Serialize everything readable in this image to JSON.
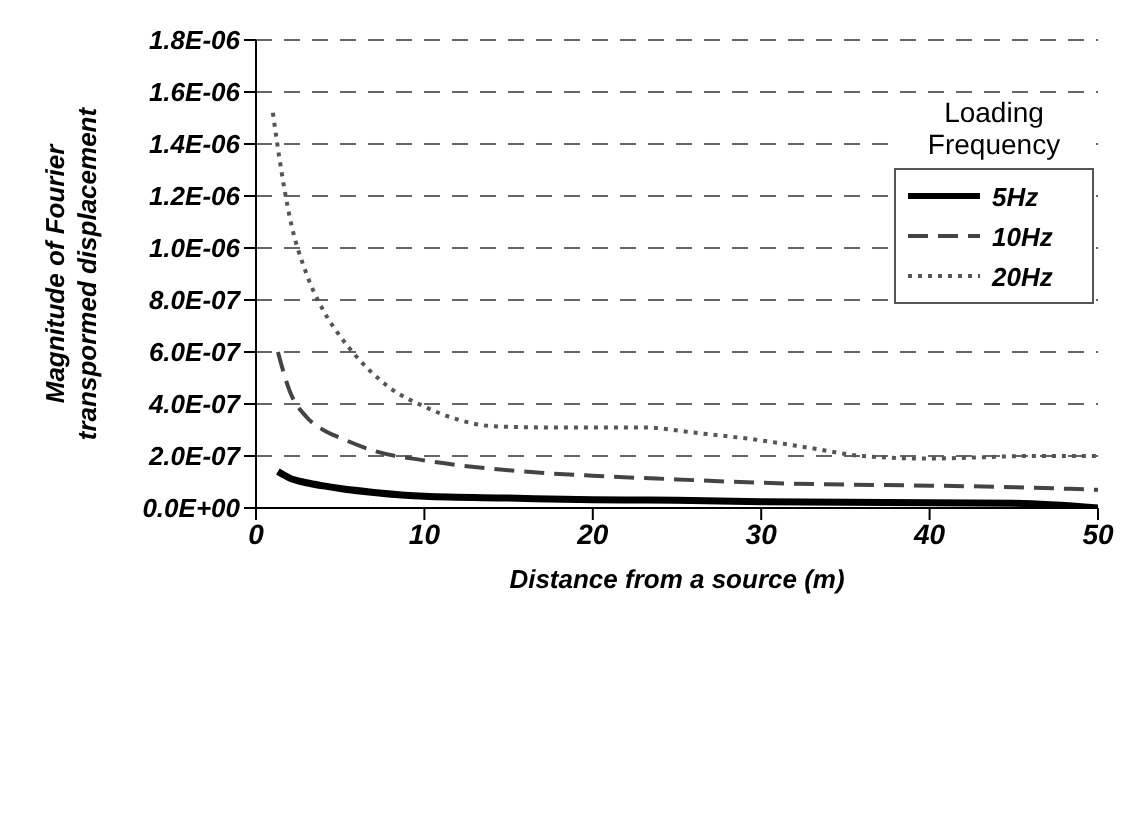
{
  "chart_data": {
    "type": "line",
    "xlabel": "Distance from a source (m)",
    "ylabel": "Magnitude of Fourier transpormed displacement",
    "legend_title": "Loading Frequency",
    "legend": "top right",
    "grid": "y",
    "marker": "none",
    "xlim": [
      0,
      50
    ],
    "xticks": [
      0,
      10,
      20,
      30,
      40,
      50
    ],
    "ylim": [
      0,
      1.8e-06
    ],
    "yticks": [
      {
        "value": 0,
        "label": "0.0E+00"
      },
      {
        "value": 2e-07,
        "label": "2.0E-07"
      },
      {
        "value": 4e-07,
        "label": "4.0E-07"
      },
      {
        "value": 6e-07,
        "label": "6.0E-07"
      },
      {
        "value": 8e-07,
        "label": "8.0E-07"
      },
      {
        "value": 1e-06,
        "label": "1.0E-06"
      },
      {
        "value": 1.2e-06,
        "label": "1.2E-06"
      },
      {
        "value": 1.4e-06,
        "label": "1.4E-06"
      },
      {
        "value": 1.6e-06,
        "label": "1.6E-06"
      },
      {
        "value": 1.8e-06,
        "label": "1.8E-06"
      }
    ],
    "series": [
      {
        "name": "5Hz",
        "color": "#000000",
        "line_style": "solid",
        "x": [
          1.3,
          2,
          3,
          4,
          5,
          7,
          10,
          15,
          20,
          25,
          30,
          35,
          40,
          45,
          50
        ],
        "values": [
          1.4e-07,
          1.15e-07,
          9.7e-08,
          8.5e-08,
          7.5e-08,
          6e-08,
          4.5e-08,
          3.8e-08,
          3.2e-08,
          3e-08,
          2.4e-08,
          2.2e-08,
          2e-08,
          1.8e-08,
          0
        ]
      },
      {
        "name": "10Hz",
        "color": "#444444",
        "line_style": "dashed",
        "x": [
          1.3,
          2,
          3,
          4,
          5,
          7,
          10,
          15,
          20,
          25,
          30,
          35,
          40,
          45,
          50
        ],
        "values": [
          6e-07,
          4.5e-07,
          3.5e-07,
          3e-07,
          2.7e-07,
          2.2e-07,
          1.83e-07,
          1.45e-07,
          1.24e-07,
          1.1e-07,
          9.7e-08,
          9e-08,
          8.6e-08,
          8e-08,
          7e-08
        ]
      },
      {
        "name": "20Hz",
        "color": "#555555",
        "line_style": "dotted",
        "x": [
          1,
          1.5,
          2,
          3,
          4,
          5,
          6,
          8,
          10,
          12,
          14,
          17,
          20,
          23,
          26,
          30,
          33,
          36,
          40,
          43,
          46,
          50
        ],
        "values": [
          1.52e-06,
          1.3e-06,
          1.12e-06,
          9e-07,
          7.6e-07,
          6.6e-07,
          5.8e-07,
          4.6e-07,
          3.9e-07,
          3.4e-07,
          3.15e-07,
          3.1e-07,
          3.1e-07,
          3.1e-07,
          2.9e-07,
          2.6e-07,
          2.3e-07,
          2e-07,
          1.9e-07,
          1.95e-07,
          2e-07,
          2e-07
        ]
      }
    ]
  }
}
